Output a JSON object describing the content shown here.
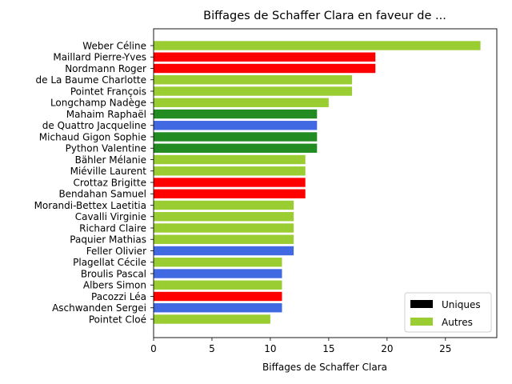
{
  "chart_data": {
    "type": "bar",
    "orientation": "horizontal",
    "title": "Biffages de Schaffer Clara en faveur de ...",
    "xlabel": "Biffages de Schaffer Clara",
    "ylabel": "",
    "xlim": [
      0,
      29.4
    ],
    "xticks": [
      0,
      5,
      10,
      15,
      20,
      25
    ],
    "grid": false,
    "legend_placement": "lower-right",
    "legend": [
      {
        "label": "Uniques",
        "color": "#000000"
      },
      {
        "label": "Autres",
        "color": "#9acd32"
      }
    ],
    "categories": [
      "Weber Céline",
      "Maillard Pierre-Yves",
      "Nordmann Roger",
      "de La Baume Charlotte",
      "Pointet François",
      "Longchamp Nadège",
      "Mahaim Raphaël",
      "de Quattro Jacqueline",
      "Michaud Gigon Sophie",
      "Python Valentine",
      "Bähler Mélanie",
      "Miéville Laurent",
      "Crottaz Brigitte",
      "Bendahan Samuel",
      "Morandi-Bettex Laetitia",
      "Cavalli Virginie",
      "Richard Claire",
      "Paquier Mathias",
      "Feller Olivier",
      "Plagellat Cécile",
      "Broulis Pascal",
      "Albers Simon",
      "Pacozzi Léa",
      "Aschwanden Sergei",
      "Pointet Cloé"
    ],
    "values": [
      28,
      19,
      19,
      17,
      17,
      15,
      14,
      14,
      14,
      14,
      13,
      13,
      13,
      13,
      12,
      12,
      12,
      12,
      12,
      11,
      11,
      11,
      11,
      11,
      10
    ],
    "colors": [
      "#9acd32",
      "#ff0000",
      "#ff0000",
      "#9acd32",
      "#9acd32",
      "#9acd32",
      "#228b22",
      "#4169e1",
      "#228b22",
      "#228b22",
      "#9acd32",
      "#9acd32",
      "#ff0000",
      "#ff0000",
      "#9acd32",
      "#9acd32",
      "#9acd32",
      "#9acd32",
      "#4169e1",
      "#9acd32",
      "#4169e1",
      "#9acd32",
      "#ff0000",
      "#4169e1",
      "#9acd32"
    ]
  }
}
